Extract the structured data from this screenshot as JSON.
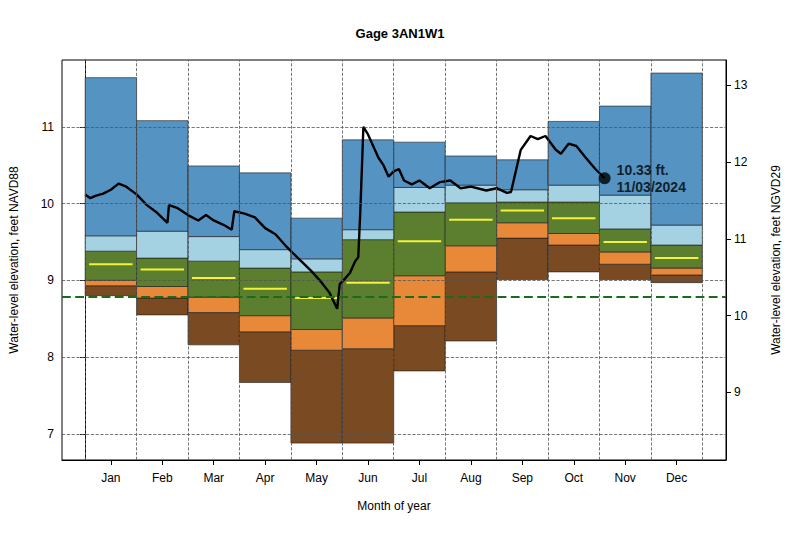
{
  "chart_data": {
    "type": "line",
    "title": "Gage 3AN1W1",
    "x_label": "Month of year",
    "y_label": "Water-level elevation, feet NAVD88",
    "y2_label": "Water-level elevation, feet NGVD29",
    "xlim": [
      -0.45,
      12.46
    ],
    "xticks": [
      {
        "value": 0.5,
        "label": "Jan"
      },
      {
        "value": 1.5,
        "label": "Feb"
      },
      {
        "value": 2.5,
        "label": "Mar"
      },
      {
        "value": 3.5,
        "label": "Apr"
      },
      {
        "value": 4.5,
        "label": "May"
      },
      {
        "value": 5.5,
        "label": "Jun"
      },
      {
        "value": 6.5,
        "label": "Jul"
      },
      {
        "value": 7.5,
        "label": "Aug"
      },
      {
        "value": 8.5,
        "label": "Sep"
      },
      {
        "value": 9.5,
        "label": "Oct"
      },
      {
        "value": 10.5,
        "label": "Nov"
      },
      {
        "value": 11.5,
        "label": "Dec"
      }
    ],
    "ylim": [
      6.66,
      11.87
    ],
    "yticks": [
      7,
      8,
      9,
      10,
      11
    ],
    "y2lim": [
      8.12,
      13.33
    ],
    "y2ticks": [
      9,
      10,
      11,
      12,
      13
    ],
    "grid": true,
    "band_x": [
      0,
      1,
      2,
      3,
      4,
      5,
      6,
      7,
      8,
      9,
      10,
      11,
      12
    ],
    "bands": [
      {
        "color": "#7a4a22",
        "low": [
          8.8,
          8.55,
          8.16,
          7.67,
          6.88,
          6.88,
          7.82,
          8.21,
          9.01,
          9.11,
          9.01,
          8.97
        ],
        "high": [
          8.93,
          8.77,
          8.58,
          8.33,
          8.09,
          8.11,
          8.41,
          9.11,
          9.55,
          9.46,
          9.21,
          9.07
        ]
      },
      {
        "color": "#e8893a",
        "low": [
          8.93,
          8.77,
          8.58,
          8.33,
          8.09,
          8.11,
          8.41,
          9.11,
          9.55,
          9.46,
          9.21,
          9.07
        ],
        "high": [
          9.0,
          8.92,
          8.78,
          8.54,
          8.36,
          8.51,
          9.06,
          9.45,
          9.75,
          9.61,
          9.37,
          9.16
        ]
      },
      {
        "color": "#5b7f2e",
        "low": [
          9.0,
          8.92,
          8.78,
          8.54,
          8.36,
          8.51,
          9.06,
          9.45,
          9.75,
          9.61,
          9.37,
          9.16
        ],
        "high": [
          9.38,
          9.29,
          9.25,
          9.16,
          9.11,
          9.53,
          9.89,
          10.01,
          10.02,
          10.02,
          9.67,
          9.46
        ]
      },
      {
        "color": "#a5d2e2",
        "low": [
          9.38,
          9.29,
          9.25,
          9.16,
          9.11,
          9.53,
          9.89,
          10.01,
          10.02,
          10.02,
          9.67,
          9.46
        ],
        "high": [
          9.58,
          9.64,
          9.57,
          9.4,
          9.28,
          9.66,
          10.21,
          10.24,
          10.18,
          10.24,
          10.11,
          9.72
        ]
      },
      {
        "color": "#5593c2",
        "low": [
          9.58,
          9.64,
          9.57,
          9.4,
          9.28,
          9.66,
          10.21,
          10.24,
          10.18,
          10.24,
          10.11,
          9.72
        ],
        "high": [
          11.64,
          11.08,
          10.49,
          10.4,
          9.81,
          10.83,
          10.8,
          10.62,
          10.57,
          11.07,
          11.27,
          11.7
        ]
      }
    ],
    "median": {
      "color": "#f2f23a",
      "values": [
        9.21,
        9.14,
        9.03,
        8.89,
        8.77,
        8.97,
        9.51,
        9.79,
        9.91,
        9.81,
        9.5,
        9.29
      ]
    },
    "reference_line": {
      "value": 8.79,
      "color": "#1c6b1c",
      "line_style": "dashed"
    },
    "series": [
      {
        "color": "#000000",
        "x": [
          0,
          0.1,
          0.2,
          0.35,
          0.5,
          0.65,
          0.8,
          1.0,
          1.2,
          1.4,
          1.6,
          1.63,
          1.8,
          2.0,
          2.2,
          2.35,
          2.5,
          2.7,
          2.85,
          2.9,
          3.1,
          3.3,
          3.5,
          3.7,
          3.9,
          4.0,
          4.2,
          4.4,
          4.6,
          4.75,
          4.9,
          4.95,
          5.05,
          5.15,
          5.25,
          5.31,
          5.35,
          5.41,
          5.5,
          5.6,
          5.7,
          5.8,
          5.9,
          6.0,
          6.1,
          6.2,
          6.35,
          6.5,
          6.7,
          6.9,
          7.1,
          7.3,
          7.5,
          7.8,
          8.0,
          8.2,
          8.28,
          8.4,
          8.47,
          8.66,
          8.8,
          8.95,
          9.15,
          9.25,
          9.4,
          9.55,
          9.73,
          9.92,
          10.1
        ],
        "values": [
          10.12,
          10.07,
          10.1,
          10.13,
          10.18,
          10.26,
          10.22,
          10.12,
          9.98,
          9.88,
          9.75,
          9.98,
          9.94,
          9.85,
          9.78,
          9.85,
          9.78,
          9.72,
          9.66,
          9.9,
          9.87,
          9.82,
          9.68,
          9.6,
          9.45,
          9.38,
          9.25,
          9.12,
          8.97,
          8.84,
          8.63,
          8.95,
          9.02,
          9.1,
          9.25,
          9.3,
          9.9,
          11.0,
          10.9,
          10.75,
          10.6,
          10.5,
          10.35,
          10.42,
          10.45,
          10.3,
          10.25,
          10.3,
          10.2,
          10.28,
          10.3,
          10.2,
          10.22,
          10.17,
          10.2,
          10.14,
          10.15,
          10.5,
          10.7,
          10.88,
          10.84,
          10.88,
          10.7,
          10.65,
          10.78,
          10.75,
          10.6,
          10.45,
          10.33
        ]
      }
    ],
    "annotation": {
      "x": 10.1,
      "y": 10.33,
      "label": "10.33 ft.\n11/03/2024",
      "marker": "circle"
    }
  }
}
